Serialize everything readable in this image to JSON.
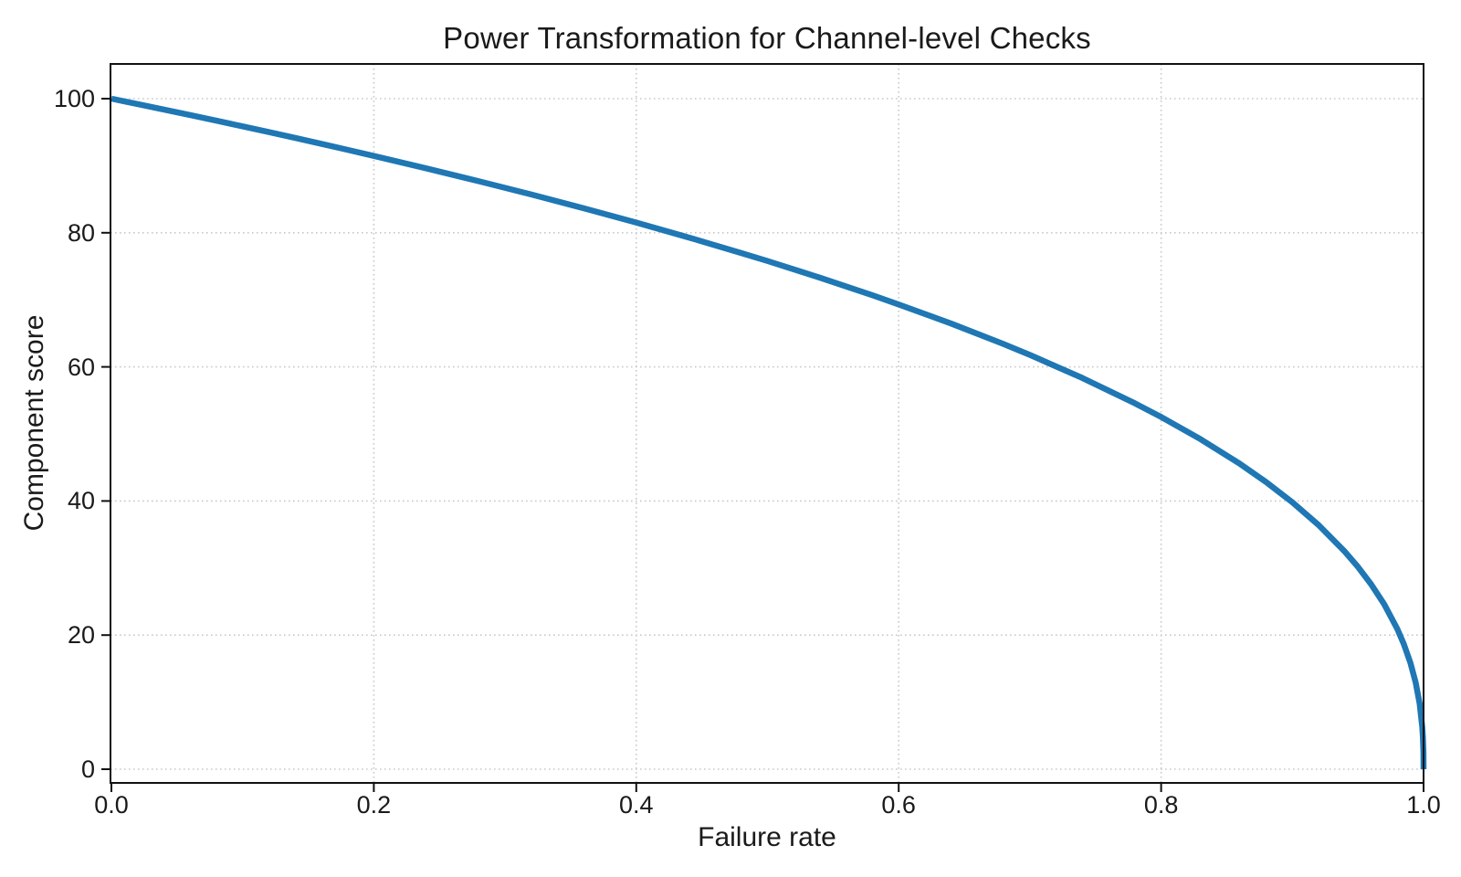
{
  "chart_data": {
    "type": "line",
    "title": "Power Transformation for Channel-level Checks",
    "xlabel": "Failure rate",
    "ylabel": "Component score",
    "x_tick_labels": [
      "0.0",
      "0.2",
      "0.4",
      "0.6",
      "0.8",
      "1.0"
    ],
    "x_tick_values": [
      0.0,
      0.2,
      0.4,
      0.6,
      0.8,
      1.0
    ],
    "y_tick_labels": [
      "0",
      "20",
      "40",
      "60",
      "80",
      "100"
    ],
    "y_tick_values": [
      0,
      20,
      40,
      60,
      80,
      100
    ],
    "xlim": [
      0.0,
      1.0
    ],
    "ylim": [
      -2,
      105
    ],
    "grid": true,
    "grid_style": "dotted",
    "legend": null,
    "line_color": "#1f77b4",
    "line_width": 6.5,
    "points": [
      [
        0.0,
        100.0
      ],
      [
        0.02,
        99.19
      ],
      [
        0.04,
        98.38
      ],
      [
        0.06,
        97.55
      ],
      [
        0.08,
        96.72
      ],
      [
        0.1,
        95.87
      ],
      [
        0.12,
        95.02
      ],
      [
        0.14,
        94.15
      ],
      [
        0.16,
        93.26
      ],
      [
        0.18,
        92.37
      ],
      [
        0.2,
        91.46
      ],
      [
        0.24,
        89.6
      ],
      [
        0.28,
        87.69
      ],
      [
        0.32,
        85.71
      ],
      [
        0.36,
        83.65
      ],
      [
        0.4,
        81.52
      ],
      [
        0.44,
        79.3
      ],
      [
        0.48,
        76.98
      ],
      [
        0.5,
        75.79
      ],
      [
        0.54,
        73.3
      ],
      [
        0.58,
        70.68
      ],
      [
        0.6,
        69.31
      ],
      [
        0.64,
        66.46
      ],
      [
        0.68,
        63.4
      ],
      [
        0.7,
        61.78
      ],
      [
        0.74,
        58.34
      ],
      [
        0.78,
        54.57
      ],
      [
        0.8,
        52.53
      ],
      [
        0.83,
        49.22
      ],
      [
        0.86,
        45.55
      ],
      [
        0.88,
        42.82
      ],
      [
        0.9,
        39.81
      ],
      [
        0.92,
        36.41
      ],
      [
        0.94,
        32.45
      ],
      [
        0.95,
        30.17
      ],
      [
        0.96,
        27.59
      ],
      [
        0.97,
        24.6
      ],
      [
        0.98,
        20.91
      ],
      [
        0.985,
        18.64
      ],
      [
        0.99,
        15.85
      ],
      [
        0.994,
        12.92
      ],
      [
        0.997,
        9.79
      ],
      [
        0.999,
        6.31
      ],
      [
        0.9995,
        4.78
      ],
      [
        0.9999,
        2.51
      ],
      [
        1.0,
        0.0
      ]
    ]
  },
  "style": {
    "spine_color": "#111111",
    "grid_color": "#c9c9c9",
    "text_color": "#1a1a1a",
    "background": "#ffffff"
  }
}
